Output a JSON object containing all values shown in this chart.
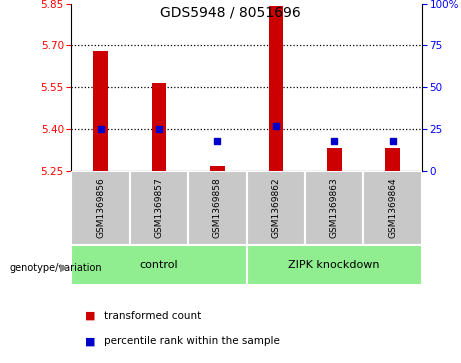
{
  "title": "GDS5948 / 8051696",
  "samples": [
    "GSM1369856",
    "GSM1369857",
    "GSM1369858",
    "GSM1369862",
    "GSM1369863",
    "GSM1369864"
  ],
  "red_values": [
    5.68,
    5.565,
    5.265,
    5.84,
    5.33,
    5.33
  ],
  "blue_percentiles": [
    25,
    25,
    18,
    27,
    18,
    18
  ],
  "y_min": 5.25,
  "y_max": 5.85,
  "y_ticks": [
    5.25,
    5.4,
    5.55,
    5.7,
    5.85
  ],
  "right_ticks": [
    0,
    25,
    50,
    75,
    100
  ],
  "right_tick_labels": [
    "0",
    "25",
    "50",
    "75",
    "100%"
  ],
  "dotted_lines": [
    5.4,
    5.55,
    5.7
  ],
  "bar_color": "#cc0000",
  "dot_color": "#0000cc",
  "bar_bottom": 5.25,
  "label_bg_color": "#c8c8c8",
  "group_bg_color": "#90EE90",
  "legend_red_label": "transformed count",
  "legend_blue_label": "percentile rank within the sample",
  "genotype_label": "genotype/variation",
  "control_label": "control",
  "zipk_label": "ZIPK knockdown",
  "bar_width": 0.25
}
